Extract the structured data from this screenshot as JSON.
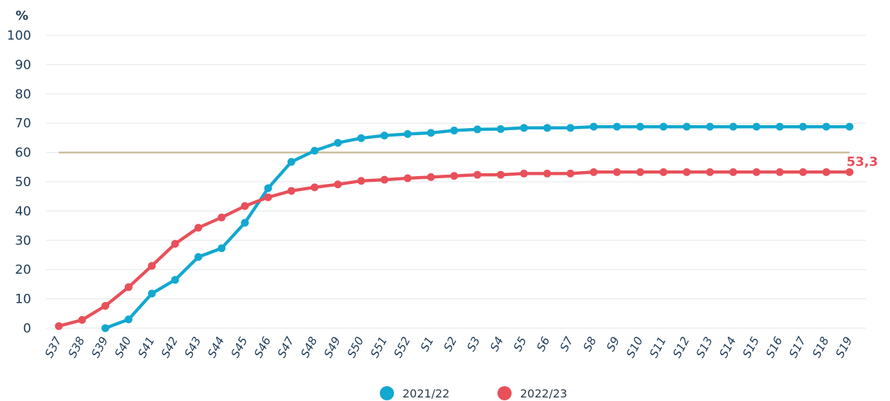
{
  "chart_data": {
    "type": "line",
    "ylabel": "%",
    "ylim": [
      0,
      100
    ],
    "yticks": [
      0,
      10,
      20,
      30,
      40,
      50,
      60,
      70,
      80,
      90,
      100
    ],
    "categories": [
      "S37",
      "S38",
      "S39",
      "S40",
      "S41",
      "S42",
      "S43",
      "S44",
      "S45",
      "S46",
      "S47",
      "S48",
      "S49",
      "S50",
      "S51",
      "S52",
      "S1",
      "S2",
      "S3",
      "S4",
      "S5",
      "S6",
      "S7",
      "S8",
      "S9",
      "S10",
      "S11",
      "S12",
      "S13",
      "S14",
      "S15",
      "S16",
      "S17",
      "S18",
      "S19"
    ],
    "target": {
      "value": 60,
      "color": "#c9bd97"
    },
    "series": [
      {
        "name": "2021/22",
        "color": "#12a8cf",
        "values": [
          null,
          null,
          0,
          3,
          11.8,
          16.5,
          24.3,
          27.3,
          36,
          47.8,
          56.8,
          60.6,
          63.3,
          64.9,
          65.8,
          66.3,
          66.7,
          67.5,
          67.9,
          68,
          68.4,
          68.4,
          68.4,
          68.8,
          68.8,
          68.8,
          68.8,
          68.8,
          68.8,
          68.8,
          68.8,
          68.8,
          68.8,
          68.8,
          68.8
        ]
      },
      {
        "name": "2022/23",
        "color": "#e8505a",
        "values": [
          0.7,
          2.8,
          7.6,
          14,
          21.3,
          28.8,
          34.3,
          37.8,
          41.7,
          44.7,
          46.9,
          48.1,
          49.1,
          50.3,
          50.7,
          51.2,
          51.6,
          52,
          52.4,
          52.4,
          52.8,
          52.8,
          52.8,
          53.3,
          53.3,
          53.3,
          53.3,
          53.3,
          53.3,
          53.3,
          53.3,
          53.3,
          53.3,
          53.3,
          53.3
        ]
      }
    ],
    "end_label": {
      "text": "53,3",
      "color": "#e8505a"
    },
    "legend_position": "bottom",
    "grid": true
  }
}
